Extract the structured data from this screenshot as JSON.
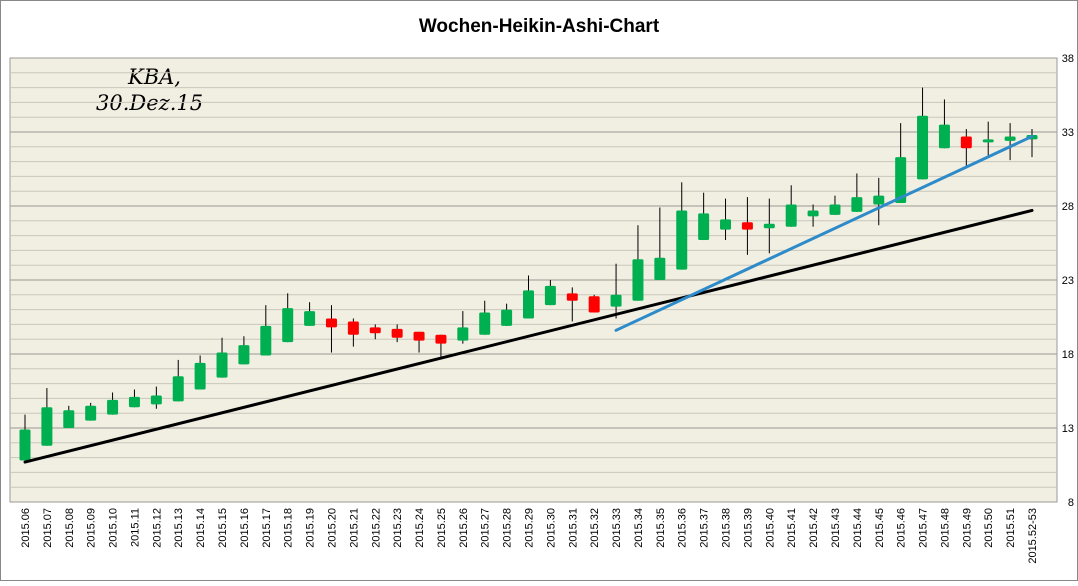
{
  "chart_data": {
    "type": "candlestick",
    "title": "Wochen-Heikin-Ashi-Chart",
    "annotation": [
      "KBA,",
      "30.Dez.15"
    ],
    "categories": [
      "2015.06",
      "2015.07",
      "2015.08",
      "2015.09",
      "2015.10",
      "2015.11",
      "2015.12",
      "2015.13",
      "2015.14",
      "2015.15",
      "2015.16",
      "2015.17",
      "2015.18",
      "2015.19",
      "2015.20",
      "2015.21",
      "2015.22",
      "2015.23",
      "2015.24",
      "2015.25",
      "2015.26",
      "2015.27",
      "2015.28",
      "2015.29",
      "2015.30",
      "2015.31",
      "2015.32",
      "2015.33",
      "2015.34",
      "2015.35",
      "2015.36",
      "2015.37",
      "2015.38",
      "2015.39",
      "2015.40",
      "2015.41",
      "2015.42",
      "2015.43",
      "2015.44",
      "2015.45",
      "2015.46",
      "2015.47",
      "2015.48",
      "2015.49",
      "2015.50",
      "2015.51",
      "2015.52-53"
    ],
    "open": [
      10.8,
      11.8,
      13.0,
      13.5,
      13.9,
      14.4,
      14.6,
      14.8,
      15.6,
      16.4,
      17.3,
      17.9,
      18.8,
      19.9,
      20.4,
      20.2,
      19.8,
      19.7,
      19.5,
      19.3,
      18.9,
      19.3,
      19.9,
      20.4,
      21.3,
      22.1,
      21.9,
      21.2,
      21.6,
      23.0,
      23.7,
      25.7,
      26.4,
      26.9,
      26.5,
      26.6,
      27.3,
      27.4,
      27.6,
      28.1,
      28.2,
      29.8,
      31.9,
      32.7,
      32.3,
      32.4,
      32.5
    ],
    "high": [
      13.9,
      15.7,
      14.5,
      14.7,
      15.4,
      15.6,
      15.8,
      17.6,
      17.9,
      19.1,
      19.2,
      21.3,
      22.1,
      21.5,
      21.3,
      20.4,
      20.0,
      20.0,
      19.5,
      19.3,
      20.9,
      21.6,
      21.4,
      23.3,
      23.0,
      22.5,
      22.0,
      24.1,
      26.7,
      27.9,
      29.6,
      28.9,
      28.5,
      28.6,
      28.5,
      29.4,
      28.1,
      28.7,
      30.2,
      29.9,
      33.6,
      36.0,
      35.2,
      33.2,
      33.7,
      33.6,
      33.2
    ],
    "low": [
      10.7,
      11.8,
      13.0,
      13.5,
      13.9,
      14.4,
      14.3,
      14.8,
      15.6,
      16.4,
      17.3,
      17.9,
      18.8,
      19.9,
      18.1,
      18.5,
      19.0,
      18.8,
      18.1,
      17.8,
      18.7,
      19.3,
      19.9,
      20.4,
      21.3,
      20.2,
      20.8,
      20.4,
      21.6,
      23.0,
      23.7,
      25.7,
      25.7,
      24.7,
      24.8,
      26.6,
      26.6,
      27.4,
      27.6,
      26.7,
      28.2,
      29.8,
      31.9,
      30.7,
      31.4,
      31.1,
      31.3
    ],
    "close": [
      12.9,
      14.4,
      14.2,
      14.5,
      14.9,
      15.1,
      15.2,
      16.5,
      17.4,
      18.1,
      18.6,
      19.9,
      21.1,
      20.9,
      19.8,
      19.3,
      19.4,
      19.1,
      18.9,
      18.7,
      19.8,
      20.8,
      21.0,
      22.3,
      22.6,
      21.6,
      20.8,
      22.0,
      24.4,
      24.5,
      27.7,
      27.5,
      27.1,
      26.4,
      26.8,
      28.1,
      27.7,
      28.1,
      28.6,
      28.7,
      31.3,
      34.1,
      33.5,
      31.9,
      32.5,
      32.7,
      32.8
    ],
    "up_color": "#00b050",
    "down_color": "#ff0000",
    "ylim": [
      8,
      38
    ],
    "yticks": [
      8,
      13,
      18,
      23,
      28,
      33,
      38
    ],
    "grid": true,
    "trendlines": [
      {
        "color": "#000000",
        "from": [
          "2015.06",
          10.7
        ],
        "to": [
          "2015.52-53",
          27.7
        ]
      },
      {
        "color": "#2e8bc9",
        "from": [
          "2015.33",
          19.6
        ],
        "to": [
          "2015.52-53",
          32.7
        ]
      }
    ]
  }
}
